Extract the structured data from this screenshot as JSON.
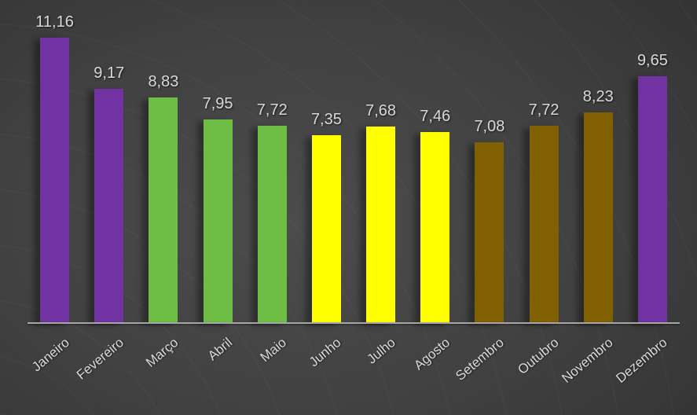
{
  "chart_data": {
    "type": "bar",
    "title": "",
    "xlabel": "",
    "ylabel": "",
    "categories": [
      "Janeiro",
      "Fevereiro",
      "Março",
      "Abril",
      "Maio",
      "Junho",
      "Julho",
      "Agosto",
      "Setembro",
      "Outubro",
      "Novembro",
      "Dezembro"
    ],
    "values": [
      11.16,
      9.17,
      8.83,
      7.95,
      7.72,
      7.35,
      7.68,
      7.46,
      7.08,
      7.72,
      8.23,
      9.65
    ],
    "value_labels": [
      "11,16",
      "9,17",
      "8,83",
      "7,95",
      "7,72",
      "7,35",
      "7,68",
      "7,46",
      "7,08",
      "7,72",
      "8,23",
      "9,65"
    ],
    "bar_colors": [
      "#7233A2",
      "#7233A2",
      "#6EBE45",
      "#6EBE45",
      "#6EBE45",
      "#FFFF00",
      "#FFFF00",
      "#FFFF00",
      "#806000",
      "#806000",
      "#806000",
      "#7233A2"
    ],
    "ylim": [
      0,
      12.63
    ],
    "grid": false,
    "legend": "none",
    "decimal_separator": ",",
    "colors": {
      "axis_line": "#A6A6A6",
      "label_text": "#D9D9D9",
      "background_center": "#4C4C4C",
      "background_edge": "#262626"
    }
  }
}
